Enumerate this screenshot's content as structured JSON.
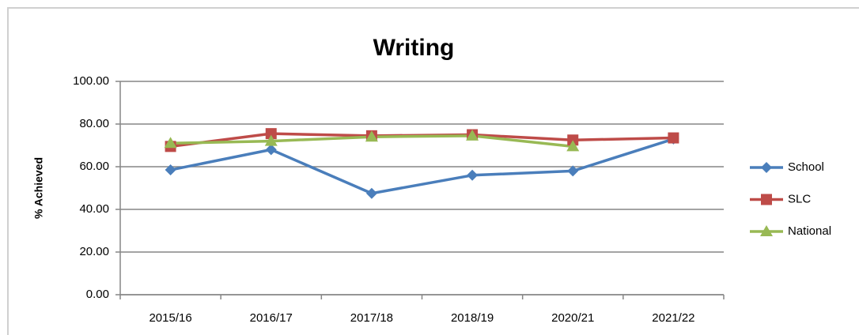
{
  "chart_data": {
    "type": "line",
    "title": "Writing",
    "y_label": "% Achieved",
    "categories": [
      "2015/16",
      "2016/17",
      "2017/18",
      "2018/19",
      "2020/21",
      "2021/22"
    ],
    "series": [
      {
        "name": "School",
        "color": "#4a7ebb",
        "marker": "diamond",
        "values": [
          58.5,
          68,
          47.5,
          56,
          58,
          73
        ]
      },
      {
        "name": "SLC",
        "color": "#be4b48",
        "marker": "square",
        "values": [
          69.5,
          75.5,
          74.5,
          75,
          72.5,
          73.5
        ]
      },
      {
        "name": "National",
        "color": "#98b954",
        "marker": "triangle",
        "values": [
          71,
          72,
          74,
          74.5,
          69.5,
          null
        ]
      }
    ],
    "ylim": [
      0,
      100
    ],
    "yticks": [
      {
        "value": 0,
        "label": "0.00"
      },
      {
        "value": 20,
        "label": "20.00"
      },
      {
        "value": 40,
        "label": "40.00"
      },
      {
        "value": 60,
        "label": "60.00"
      },
      {
        "value": 80,
        "label": "80.00"
      },
      {
        "value": 100,
        "label": "100.00"
      }
    ],
    "grid": true,
    "legend": "right"
  }
}
